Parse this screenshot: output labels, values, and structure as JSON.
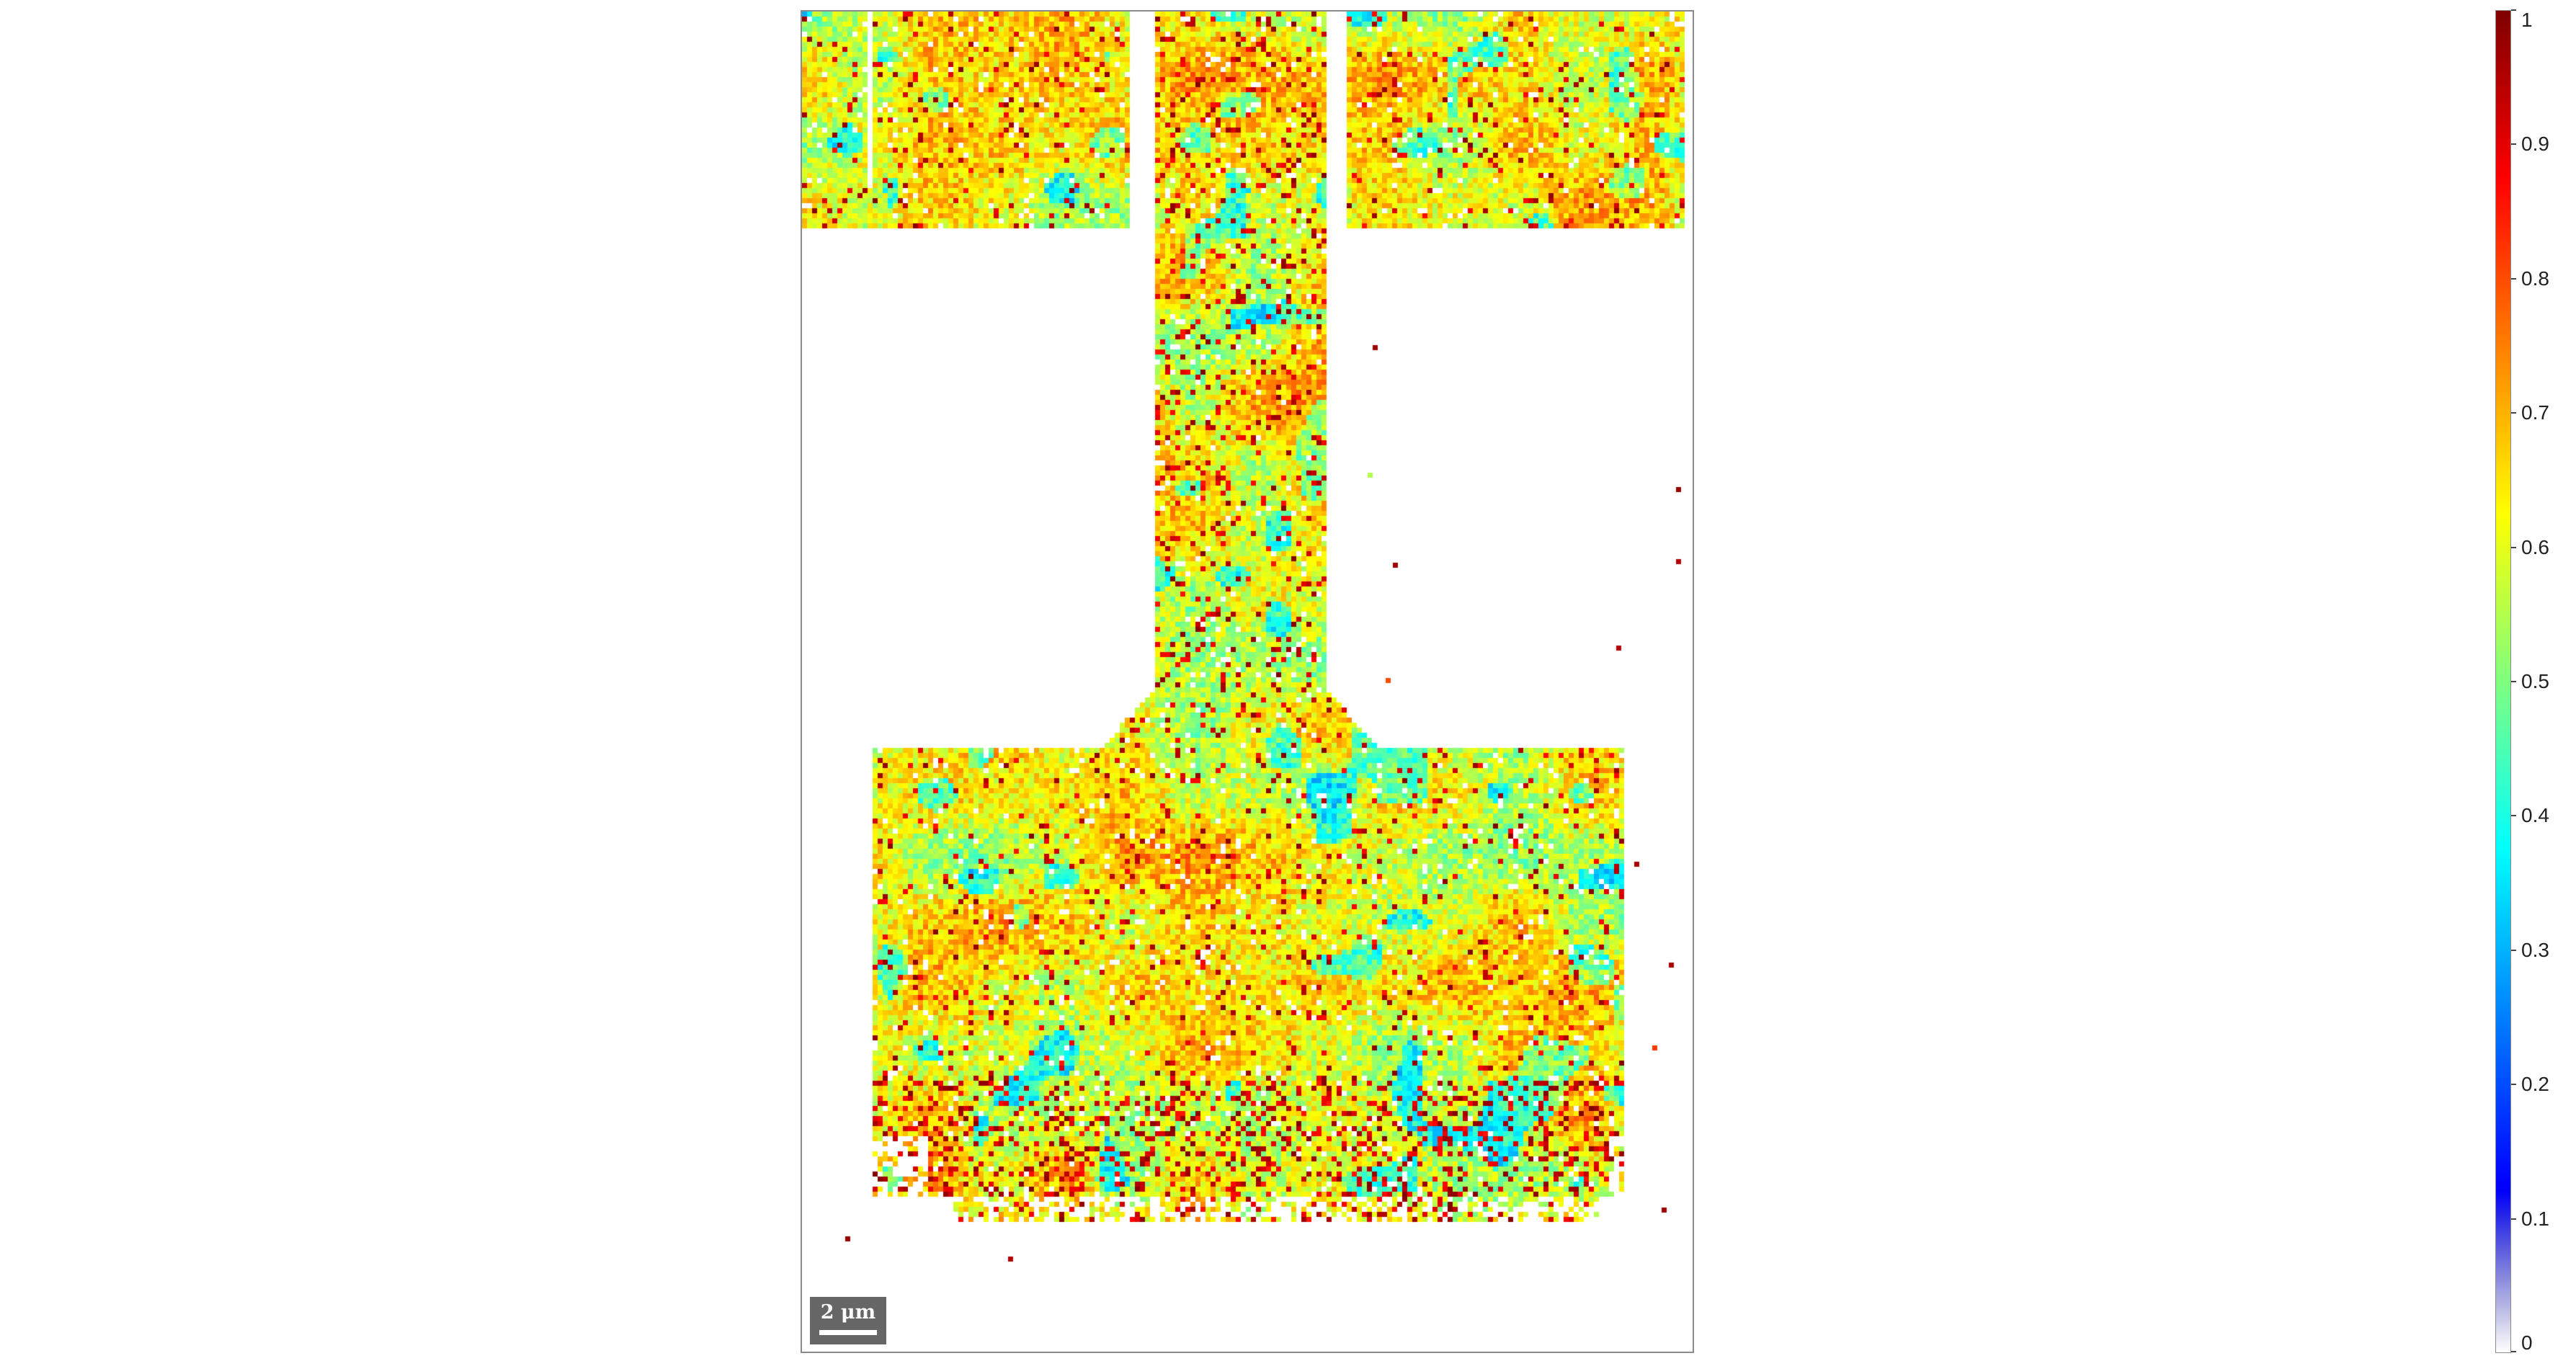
{
  "chart_data": {
    "type": "heatmap",
    "title": "",
    "xlabel": "",
    "ylabel": "",
    "colormap": "jet",
    "clim": [
      0,
      1
    ],
    "colorbar_ticks": [
      "0",
      "0.1",
      "0.2",
      "0.3",
      "0.4",
      "0.5",
      "0.6",
      "0.7",
      "0.8",
      "0.9",
      "1"
    ],
    "scalebar_label": "2 μm",
    "colors": {
      "background": "#ffffff",
      "frame": "#8a8a8a",
      "scalebar_bg": "#666666"
    }
  }
}
